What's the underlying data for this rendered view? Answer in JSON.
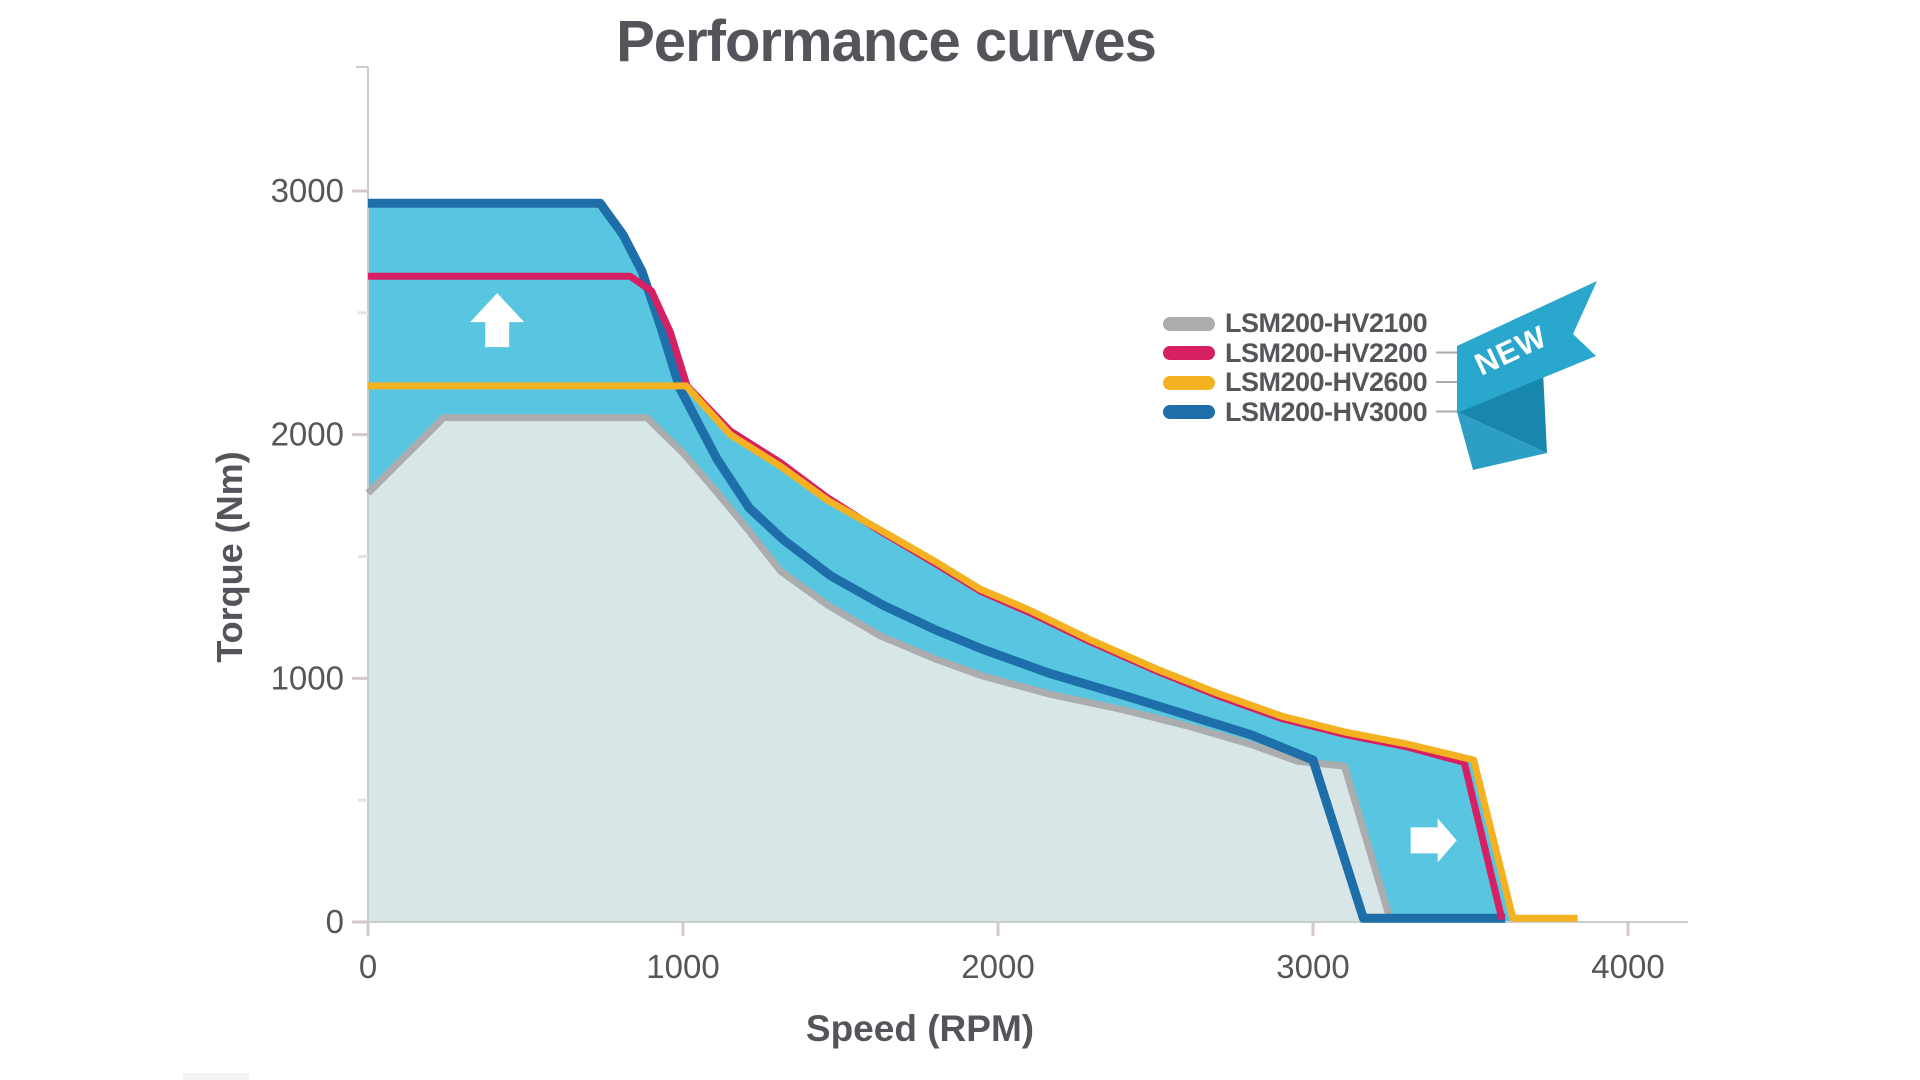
{
  "page": {
    "title": "Performance curves"
  },
  "axes": {
    "x_label": "Speed (RPM)",
    "y_label": "Torque (Nm)"
  },
  "badge": {
    "text": "NEW"
  },
  "legend": {
    "items": [
      {
        "label": "LSM200-HV2100",
        "color": "#ABACAE",
        "connected_to_badge": false
      },
      {
        "label": "LSM200-HV2200",
        "color": "#D71F63",
        "connected_to_badge": true
      },
      {
        "label": "LSM200-HV2600",
        "color": "#F4B223",
        "connected_to_badge": true
      },
      {
        "label": "LSM200-HV3000",
        "color": "#1E6FA9",
        "connected_to_badge": true
      }
    ]
  },
  "colors": {
    "text": "#55565A",
    "axis_line": "#C9CDCF",
    "major_tick": "#D5C9C9",
    "minor_tick": "#E3E3E3",
    "new_envelope_fill": "#58C6E1",
    "legacy_envelope_fill": "#D9E6E8",
    "badge_main": "#2AA7CC",
    "badge_fold_dark": "#1787AD",
    "badge_fold_mid": "#2D9FC4",
    "arrow": "#FFFFFF",
    "connector_line": "#A7ABAD"
  },
  "chart_data": {
    "type": "line",
    "title": "Performance curves",
    "xlabel": "Speed (RPM)",
    "ylabel": "Torque (Nm)",
    "xlim": [
      0,
      4200
    ],
    "ylim": [
      0,
      3300
    ],
    "x_ticks": [
      0,
      1000,
      2000,
      3000,
      4000
    ],
    "y_ticks": [
      0,
      1000,
      2000,
      3000
    ],
    "y_minor_ticks": [
      500,
      1500,
      2500
    ],
    "grid": false,
    "legend_position": "right-middle",
    "series": [
      {
        "name": "LSM200-HV2100",
        "color": "#ABACAE",
        "width": 7,
        "points": [
          [
            0,
            1760
          ],
          [
            240,
            2070
          ],
          [
            885,
            2070
          ],
          [
            1000,
            1925
          ],
          [
            1100,
            1775
          ],
          [
            1200,
            1620
          ],
          [
            1310,
            1440
          ],
          [
            1460,
            1300
          ],
          [
            1625,
            1175
          ],
          [
            1800,
            1080
          ],
          [
            1950,
            1010
          ],
          [
            2165,
            935
          ],
          [
            2400,
            870
          ],
          [
            2600,
            805
          ],
          [
            2800,
            730
          ],
          [
            2950,
            660
          ],
          [
            3100,
            640
          ],
          [
            3245,
            10
          ]
        ]
      },
      {
        "name": "LSM200-HV3000",
        "color": "#1E6FA9",
        "width": 9,
        "points": [
          [
            0,
            2950
          ],
          [
            737,
            2950
          ],
          [
            810,
            2820
          ],
          [
            870,
            2670
          ],
          [
            930,
            2440
          ],
          [
            990,
            2190
          ],
          [
            1108,
            1900
          ],
          [
            1210,
            1700
          ],
          [
            1317,
            1570
          ],
          [
            1470,
            1420
          ],
          [
            1635,
            1300
          ],
          [
            1800,
            1200
          ],
          [
            1950,
            1120
          ],
          [
            2165,
            1020
          ],
          [
            2400,
            930
          ],
          [
            2600,
            850
          ],
          [
            2800,
            770
          ],
          [
            3000,
            665
          ],
          [
            3160,
            15
          ],
          [
            3610,
            15
          ]
        ]
      },
      {
        "name": "LSM200-HV2200",
        "color": "#D71F63",
        "width": 7,
        "points": [
          [
            0,
            2650
          ],
          [
            832,
            2650
          ],
          [
            900,
            2590
          ],
          [
            960,
            2420
          ],
          [
            1013,
            2200
          ],
          [
            1150,
            2015
          ],
          [
            1310,
            1885
          ],
          [
            1460,
            1740
          ],
          [
            1625,
            1605
          ],
          [
            1800,
            1472
          ],
          [
            1945,
            1357
          ],
          [
            2100,
            1270
          ],
          [
            2290,
            1152
          ],
          [
            2500,
            1032
          ],
          [
            2695,
            930
          ],
          [
            2900,
            835
          ],
          [
            3100,
            770
          ],
          [
            3300,
            718
          ],
          [
            3480,
            655
          ],
          [
            3600,
            10
          ]
        ]
      },
      {
        "name": "LSM200-HV2600",
        "color": "#F4B223",
        "width": 7,
        "points": [
          [
            0,
            2200
          ],
          [
            1010,
            2200
          ],
          [
            1150,
            2000
          ],
          [
            1310,
            1870
          ],
          [
            1460,
            1730
          ],
          [
            1625,
            1610
          ],
          [
            1800,
            1480
          ],
          [
            1945,
            1365
          ],
          [
            2100,
            1280
          ],
          [
            2290,
            1160
          ],
          [
            2500,
            1040
          ],
          [
            2695,
            940
          ],
          [
            2900,
            845
          ],
          [
            3100,
            780
          ],
          [
            3300,
            730
          ],
          [
            3510,
            665
          ],
          [
            3635,
            15
          ],
          [
            3840,
            15
          ]
        ]
      }
    ],
    "areas": [
      {
        "name": "legacy-envelope-fill",
        "color": "#D9E6E8",
        "points": [
          [
            0,
            0
          ],
          [
            0,
            1760
          ],
          [
            240,
            2070
          ],
          [
            885,
            2070
          ],
          [
            1000,
            1925
          ],
          [
            1100,
            1775
          ],
          [
            1200,
            1620
          ],
          [
            1310,
            1440
          ],
          [
            1460,
            1300
          ],
          [
            1625,
            1175
          ],
          [
            1800,
            1080
          ],
          [
            1950,
            1010
          ],
          [
            2165,
            935
          ],
          [
            2400,
            870
          ],
          [
            2600,
            805
          ],
          [
            2800,
            730
          ],
          [
            2950,
            660
          ],
          [
            3100,
            640
          ],
          [
            3245,
            0
          ]
        ]
      },
      {
        "name": "new-envelope-fill",
        "color": "#58C6E1",
        "points": [
          [
            0,
            1760
          ],
          [
            0,
            2950
          ],
          [
            737,
            2950
          ],
          [
            810,
            2820
          ],
          [
            870,
            2670
          ],
          [
            930,
            2440
          ],
          [
            990,
            2190
          ],
          [
            1013,
            2200
          ],
          [
            1150,
            2000
          ],
          [
            1310,
            1870
          ],
          [
            1460,
            1730
          ],
          [
            1625,
            1610
          ],
          [
            1800,
            1480
          ],
          [
            1945,
            1365
          ],
          [
            2100,
            1280
          ],
          [
            2290,
            1160
          ],
          [
            2500,
            1040
          ],
          [
            2695,
            940
          ],
          [
            2900,
            845
          ],
          [
            3100,
            780
          ],
          [
            3300,
            730
          ],
          [
            3510,
            665
          ],
          [
            3635,
            0
          ],
          [
            3245,
            0
          ],
          [
            3100,
            640
          ],
          [
            2950,
            660
          ],
          [
            2800,
            730
          ],
          [
            2600,
            805
          ],
          [
            2400,
            870
          ],
          [
            2165,
            935
          ],
          [
            1950,
            1010
          ],
          [
            1800,
            1080
          ],
          [
            1625,
            1175
          ],
          [
            1460,
            1300
          ],
          [
            1310,
            1440
          ],
          [
            1200,
            1620
          ],
          [
            1100,
            1775
          ],
          [
            1000,
            1925
          ],
          [
            885,
            2070
          ],
          [
            240,
            2070
          ]
        ]
      }
    ],
    "annotations": [
      {
        "type": "arrow-up",
        "x": 410,
        "y": 2470
      },
      {
        "type": "arrow-right",
        "x": 3380,
        "y": 335
      }
    ]
  }
}
